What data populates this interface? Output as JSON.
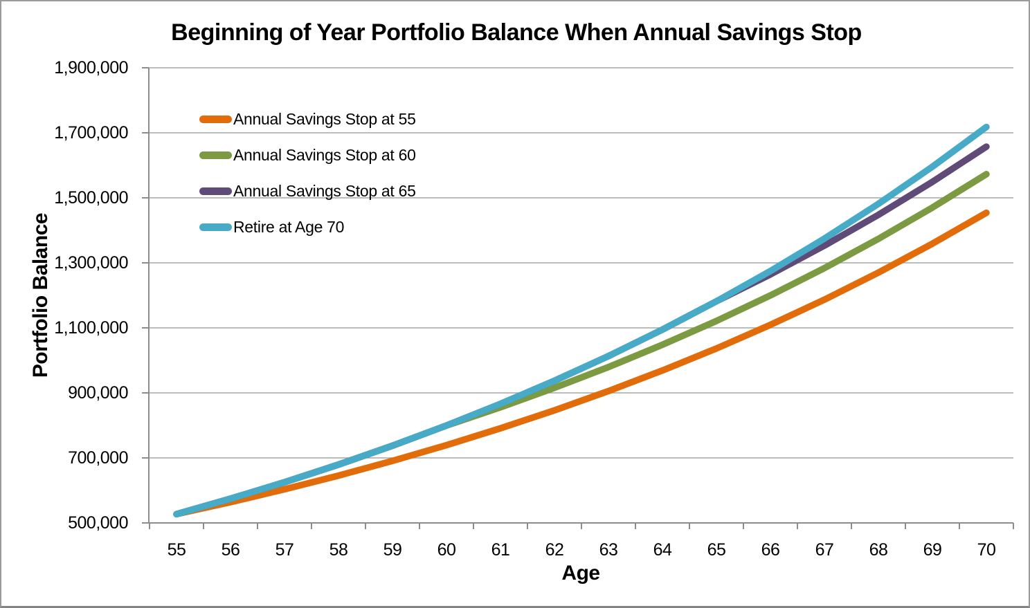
{
  "chart_data": {
    "type": "line",
    "title": "Beginning of Year Portfolio Balance When Annual Savings Stop",
    "xlabel": "Age",
    "ylabel": "Portfolio Balance",
    "x": [
      55,
      56,
      57,
      58,
      59,
      60,
      61,
      62,
      63,
      64,
      65,
      66,
      67,
      68,
      69,
      70
    ],
    "x_tick_labels": [
      "55",
      "56",
      "57",
      "58",
      "59",
      "60",
      "61",
      "62",
      "63",
      "64",
      "65",
      "66",
      "67",
      "68",
      "69",
      "70"
    ],
    "y_ticks": [
      500000,
      700000,
      900000,
      1100000,
      1300000,
      1500000,
      1700000,
      1900000
    ],
    "y_tick_labels": [
      "500,000",
      "700,000",
      "900,000",
      "1,100,000",
      "1,300,000",
      "1,500,000",
      "1,700,000",
      "1,900,000"
    ],
    "ylim": [
      500000,
      1900000
    ],
    "xlim_ages": [
      55,
      70
    ],
    "grid": "horizontal",
    "legend_position": "inside-upper-left",
    "series": [
      {
        "name": "Annual Savings Stop at 55",
        "color": "#E36C0A",
        "values": [
          527000,
          563890,
          603362,
          645598,
          690790,
          739145,
          790985,
          846354,
          905484,
          968868,
          1036689,
          1109257,
          1186905,
          1269988,
          1358887,
          1454010
        ]
      },
      {
        "name": "Annual Savings Stop at 60",
        "color": "#7C9A41",
        "values": [
          527000,
          574390,
          625097,
          679354,
          737409,
          799528,
          855595,
          915487,
          979456,
          1048018,
          1121380,
          1199876,
          1283867,
          1373738,
          1469899,
          1572793
        ]
      },
      {
        "name": "Annual Savings Stop at 65",
        "color": "#5F4A78",
        "values": [
          527000,
          574390,
          625097,
          679354,
          737409,
          799528,
          866095,
          937221,
          1013212,
          1094637,
          1181762,
          1264485,
          1352999,
          1447708,
          1549048,
          1657482
        ]
      },
      {
        "name": "Retire at Age 70",
        "color": "#47ABC7",
        "values": [
          527000,
          574390,
          625097,
          679354,
          737409,
          799528,
          866095,
          937221,
          1013212,
          1094637,
          1181762,
          1274985,
          1374734,
          1481465,
          1595667,
          1717865
        ]
      }
    ],
    "style": {
      "gridline_color": "#A6A6A6",
      "axis_color": "#8C8C8C",
      "background": "#FFFFFF",
      "line_width": 9.5
    }
  }
}
